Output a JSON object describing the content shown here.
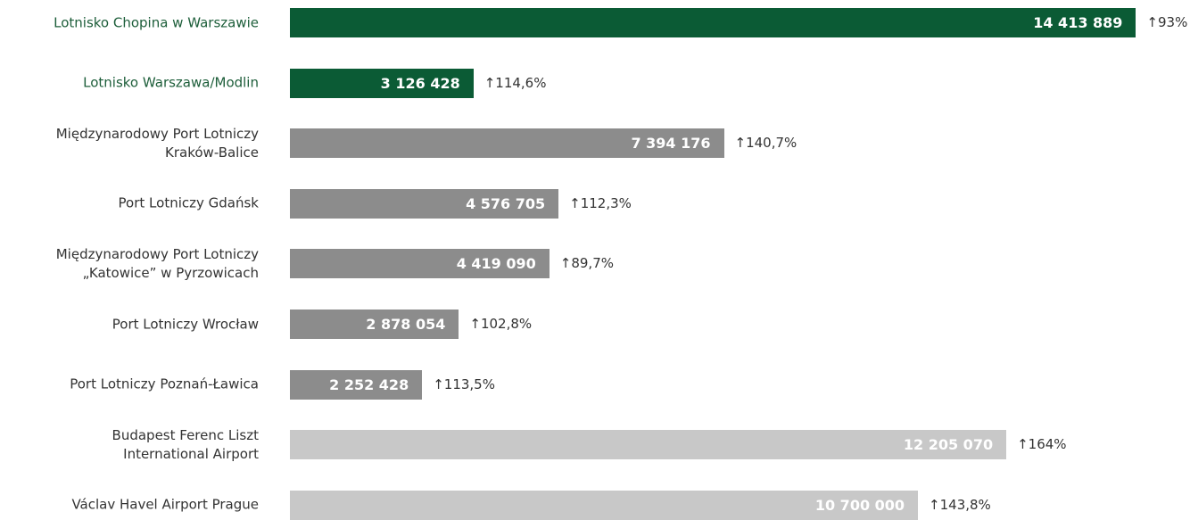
{
  "chart_data": {
    "type": "barh",
    "categories": [
      "Lotnisko Chopina w Warszawie",
      "Lotnisko Warszawa/Modlin",
      "Międzynarodowy Port Lotniczy\nKraków-Balice",
      "Port Lotniczy Gdańsk",
      "Międzynarodowy Port Lotniczy\n„Katowice” w Pyrzowicach",
      "Port Lotniczy Wrocław",
      "Port Lotniczy Poznań-Ławica",
      "Budapest Ferenc Liszt\nInternational Airport",
      "Václav Havel Airport Prague"
    ],
    "values": [
      14413889,
      3126428,
      7394176,
      4576705,
      4419090,
      2878054,
      2252428,
      12205070,
      10700000
    ],
    "value_labels": [
      "14 413 889",
      "3 126 428",
      "7 394 176",
      "4 576 705",
      "4 419 090",
      "2 878 054",
      "2 252 428",
      "12 205 070",
      "10 700 000"
    ],
    "change_labels": [
      "↑93%",
      "↑114,6%",
      "↑140,7%",
      "↑112,3%",
      "↑89,7%",
      "↑102,8%",
      "↑113,5%",
      "↑164%",
      "↑143,8%"
    ],
    "colors": [
      "#0b5b35",
      "#0b5b35",
      "#8c8c8c",
      "#8c8c8c",
      "#8c8c8c",
      "#8c8c8c",
      "#8c8c8c",
      "#c8c8c8",
      "#c8c8c8"
    ],
    "label_colors": [
      "#1d5e3a",
      "#1d5e3a",
      "#333333",
      "#333333",
      "#333333",
      "#333333",
      "#333333",
      "#333333",
      "#333333"
    ],
    "xlim": [
      0,
      15000000
    ]
  }
}
